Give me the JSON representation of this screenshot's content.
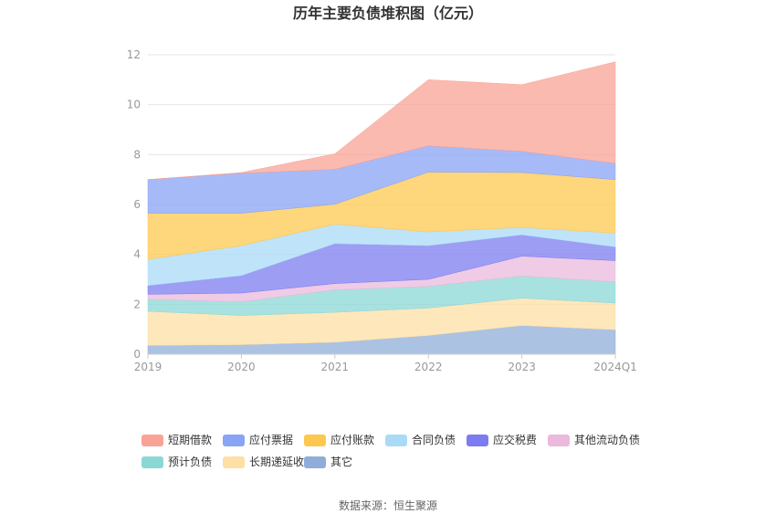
{
  "chart_data": {
    "type": "area",
    "stacked": true,
    "title": "历年主要负债堆积图（亿元）",
    "source": "数据来源：恒生聚源",
    "x": [
      "2019",
      "2020",
      "2021",
      "2022",
      "2023",
      "2024Q1"
    ],
    "ylim": [
      0,
      12
    ],
    "yticks": [
      "0",
      "2",
      "4",
      "6",
      "8",
      "10",
      "12"
    ],
    "grid": true,
    "legend_position": "bottom",
    "series": [
      {
        "name": "其它",
        "color": "#8fadd9",
        "values": [
          0.35,
          0.38,
          0.48,
          0.75,
          1.15,
          0.98
        ]
      },
      {
        "name": "长期递延收益",
        "color": "#fedfa4",
        "values": [
          1.37,
          1.17,
          1.2,
          1.1,
          1.1,
          1.07
        ]
      },
      {
        "name": "预计负债",
        "color": "#89d8d5",
        "values": [
          0.48,
          0.55,
          0.9,
          0.87,
          0.88,
          0.85
        ]
      },
      {
        "name": "其他流动负债",
        "color": "#eab9dc",
        "values": [
          0.2,
          0.35,
          0.25,
          0.28,
          0.8,
          0.85
        ]
      },
      {
        "name": "应交税费",
        "color": "#7c7cf0",
        "values": [
          0.35,
          0.7,
          1.6,
          1.35,
          0.85,
          0.55
        ]
      },
      {
        "name": "合同负债",
        "color": "#a9dbf7",
        "values": [
          1.05,
          1.2,
          0.78,
          0.55,
          0.3,
          0.55
        ]
      },
      {
        "name": "应付账款",
        "color": "#fdc84f",
        "values": [
          1.85,
          1.3,
          0.8,
          2.4,
          2.2,
          2.15
        ]
      },
      {
        "name": "应付票据",
        "color": "#89a3f6",
        "values": [
          1.35,
          1.6,
          1.4,
          1.05,
          0.85,
          0.65
        ]
      },
      {
        "name": "短期借款",
        "color": "#f8a396",
        "values": [
          0.0,
          0.03,
          0.62,
          2.65,
          2.67,
          4.07
        ]
      }
    ],
    "legend_order": [
      "短期借款",
      "应付票据",
      "应付账款",
      "合同负债",
      "应交税费",
      "其他流动负债",
      "预计负债",
      "长期递延收益",
      "其它"
    ]
  }
}
